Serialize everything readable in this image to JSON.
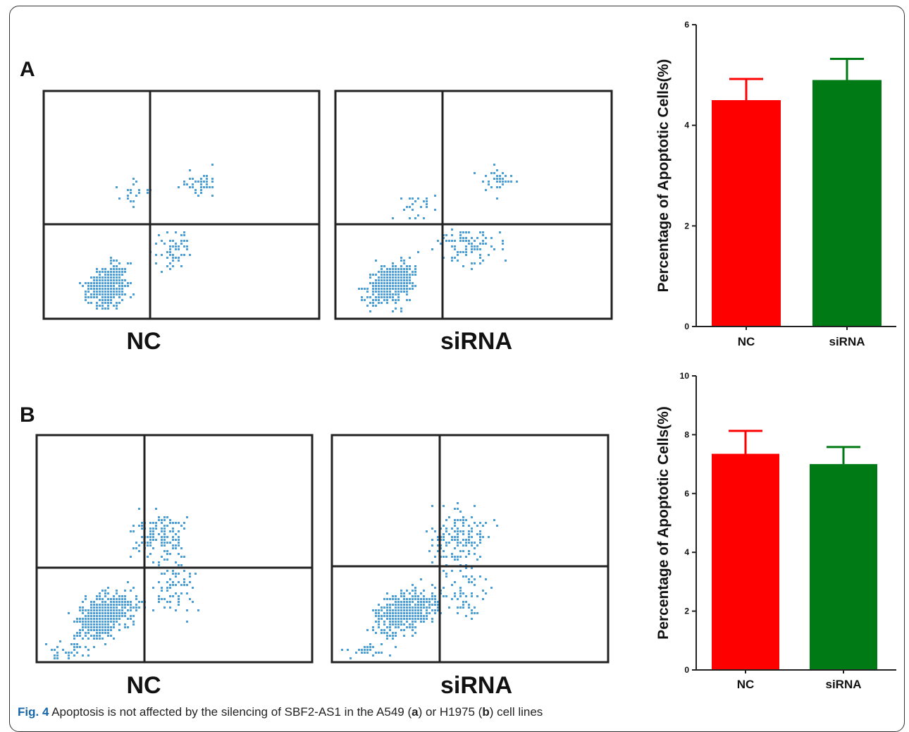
{
  "panels": [
    {
      "label": "A"
    },
    {
      "label": "B"
    }
  ],
  "flow_plots": [
    {
      "label": "NC"
    },
    {
      "label": "siRNA"
    },
    {
      "label": "NC"
    },
    {
      "label": "siRNA"
    }
  ],
  "colors": {
    "scatter": "#4a9fd8",
    "nc_bar": "#ff0000",
    "sirna_bar": "#007a15",
    "axis": "#222222"
  },
  "chart_data": [
    {
      "type": "bar",
      "panel": "A",
      "categories": [
        "NC",
        "siRNA"
      ],
      "values": [
        4.5,
        4.9
      ],
      "errors": [
        0.42,
        0.42
      ],
      "colors": [
        "#ff0000",
        "#007a15"
      ],
      "ylabel": "Percentage of Apoptotic Cells(%)",
      "ylim": [
        0,
        6
      ],
      "yticks": [
        "0",
        "2",
        "4",
        "6"
      ]
    },
    {
      "type": "bar",
      "panel": "B",
      "categories": [
        "NC",
        "siRNA"
      ],
      "values": [
        7.35,
        7.0
      ],
      "errors": [
        0.78,
        0.58
      ],
      "colors": [
        "#ff0000",
        "#007a15"
      ],
      "ylabel": "Percentage of Apoptotic Cells(%)",
      "ylim": [
        0,
        10
      ],
      "yticks": [
        "0",
        "2",
        "4",
        "6",
        "8",
        "10"
      ]
    }
  ],
  "caption": {
    "fig_label": "Fig. 4",
    "text_1": " Apoptosis is not affected by the silencing of SBF2-AS1 in the A549 (",
    "mark_a": "a",
    "text_2": ") or H1975 (",
    "mark_b": "b",
    "text_3": ") cell lines"
  }
}
